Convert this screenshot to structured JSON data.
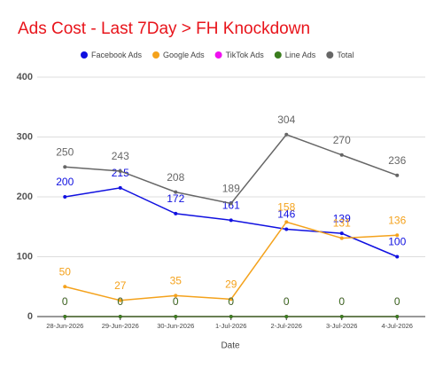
{
  "chart_data": {
    "type": "line",
    "title": "Ads Cost - Last 7Day > FH Knockdown",
    "x_label": "Date",
    "categories": [
      "28-Jun-2026",
      "29-Jun-2026",
      "30-Jun-2026",
      "1-Jul-2026",
      "2-Jul-2026",
      "3-Jul-2026",
      "4-Jul-2026"
    ],
    "series": [
      {
        "name": "Facebook Ads",
        "color": "#1010e0",
        "values": [
          200,
          215,
          172,
          161,
          146,
          139,
          100
        ]
      },
      {
        "name": "Google Ads",
        "color": "#f4a21c",
        "values": [
          50,
          27,
          35,
          29,
          158,
          131,
          136
        ]
      },
      {
        "name": "TikTok Ads",
        "color": "#f010f0",
        "values": [
          0,
          0,
          0,
          0,
          0,
          0,
          0
        ]
      },
      {
        "name": "Line Ads",
        "color": "#3a7d1e",
        "values": [
          0,
          0,
          0,
          0,
          0,
          0,
          0
        ]
      },
      {
        "name": "Total",
        "color": "#666666",
        "values": [
          250,
          243,
          208,
          189,
          304,
          270,
          236
        ]
      }
    ],
    "ylim": [
      0,
      400
    ],
    "yticks": [
      0,
      100,
      200,
      300,
      400
    ],
    "grid": true,
    "legend": "top"
  }
}
